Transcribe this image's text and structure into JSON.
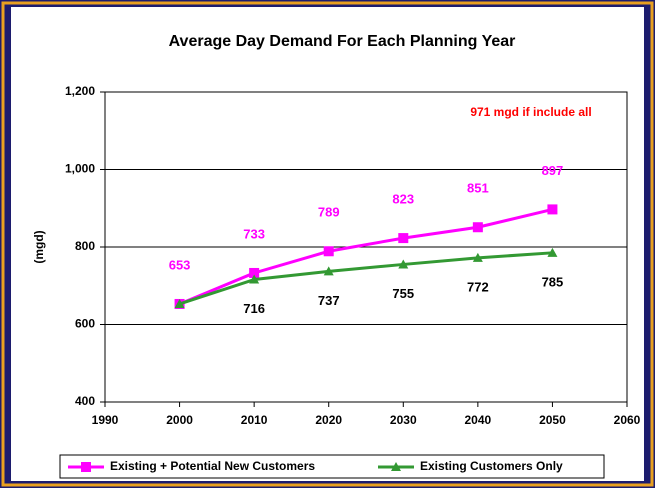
{
  "chart_data": {
    "type": "line",
    "title": "Average Day Demand For Each Planning Year",
    "y_label": "(mgd)",
    "annotation": "971 mgd if include all",
    "x": [
      2000,
      2010,
      2020,
      2030,
      2040,
      2050
    ],
    "series": [
      {
        "name": "Existing + Potential New Customers",
        "color": "#ff00ff",
        "marker": "square",
        "values": [
          653,
          733,
          789,
          823,
          851,
          897
        ]
      },
      {
        "name": "Existing Customers Only",
        "color": "#339933",
        "marker": "triangle",
        "values": [
          653,
          716,
          737,
          755,
          772,
          785
        ],
        "value_labels": [
          null,
          "716",
          "737",
          "755",
          "772",
          "785"
        ]
      }
    ],
    "xlim": [
      1990,
      2060
    ],
    "xticks": [
      1990,
      2000,
      2010,
      2020,
      2030,
      2040,
      2050,
      2060
    ],
    "ylim": [
      400,
      1200
    ],
    "yticks": [
      400,
      600,
      800,
      {
        "value": 1000,
        "label": "1,000"
      },
      {
        "value": 1200,
        "label": "1,200"
      }
    ],
    "grid": true,
    "legend": "bottom"
  }
}
